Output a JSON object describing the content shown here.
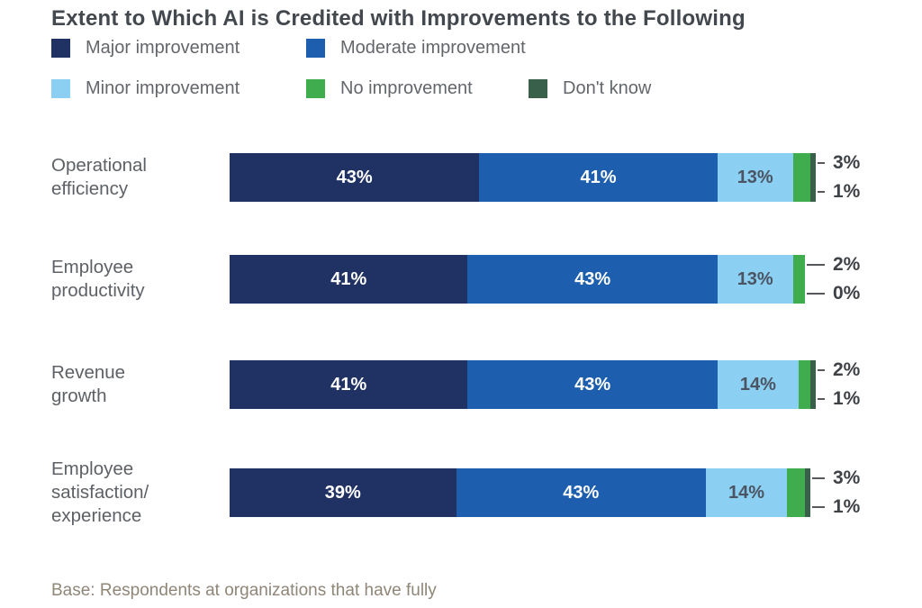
{
  "title": "Extent to Which AI is Credited with Improvements to the Following",
  "legend": [
    {
      "label": "Major improvement",
      "color": "#203263"
    },
    {
      "label": "Moderate improvement",
      "color": "#1d5fae"
    },
    {
      "label": "Minor improvement",
      "color": "#8bd0f2"
    },
    {
      "label": "No improvement",
      "color": "#3fad4e"
    },
    {
      "label": "Don't know",
      "color": "#38604a"
    }
  ],
  "footer": "Base: Respondents at organizations that have fully",
  "chart_data": {
    "type": "bar",
    "orientation": "horizontal",
    "stacked": true,
    "unit": "%",
    "xlim": [
      0,
      100
    ],
    "grid": false,
    "legend_position": "top",
    "title": "Extent to Which AI is Credited with Improvements to the Following",
    "categories": [
      "Operational efficiency",
      "Employee productivity",
      "Revenue growth",
      "Employee satisfaction/experience"
    ],
    "category_label_lines": [
      [
        "Operational",
        "efficiency"
      ],
      [
        "Employee",
        "productivity"
      ],
      [
        "Revenue",
        "growth"
      ],
      [
        "Employee",
        "satisfaction/",
        "experience"
      ]
    ],
    "series": [
      {
        "name": "Major improvement",
        "color": "#203263",
        "values": [
          43,
          41,
          41,
          39
        ]
      },
      {
        "name": "Moderate improvement",
        "color": "#1d5fae",
        "values": [
          41,
          43,
          43,
          43
        ]
      },
      {
        "name": "Minor improvement",
        "color": "#8bd0f2",
        "values": [
          13,
          13,
          14,
          14
        ]
      },
      {
        "name": "No improvement",
        "color": "#3fad4e",
        "values": [
          3,
          2,
          2,
          3
        ]
      },
      {
        "name": "Don't know",
        "color": "#38604a",
        "values": [
          1,
          0,
          1,
          1
        ]
      }
    ],
    "callout_labels": {
      "no_improvement": [
        "3%",
        "2%",
        "2%",
        "3%"
      ],
      "dont_know": [
        "1%",
        "0%",
        "1%",
        "1%"
      ]
    }
  }
}
